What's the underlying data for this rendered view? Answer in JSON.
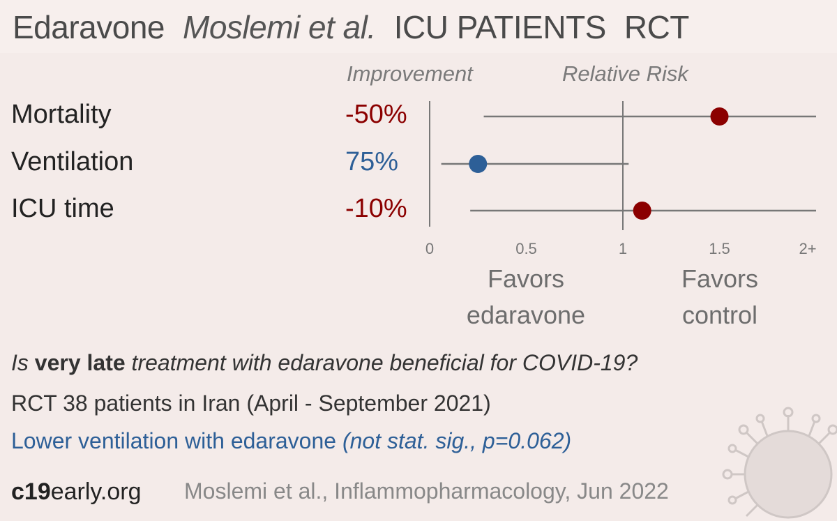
{
  "header": {
    "drug": "Edaravone",
    "author": "Moslemi et al.",
    "population": "ICU PATIENTS",
    "design": "RCT"
  },
  "columns": {
    "improvement": "Improvement",
    "relative_risk": "Relative Risk"
  },
  "favors": {
    "left_line1": "Favors",
    "left_line2": "edaravone",
    "right_line1": "Favors",
    "right_line2": "control"
  },
  "summary": {
    "question_pre": "Is ",
    "question_bold": "very late",
    "question_post": " treatment with edaravone beneficial for COVID-19?",
    "study": "RCT 38 patients in Iran (April - September 2021)",
    "conclusion_main": "Lower ventilation with edaravone ",
    "conclusion_detail": "(not stat. sig., p=0.062)"
  },
  "footer": {
    "site_bold": "c19",
    "site_rest": "early.org",
    "reference": "Moslemi et al., Inflammopharmacology, Jun 2022"
  },
  "colors": {
    "harm": "#8b0000",
    "benefit": "#2d5f97",
    "line": "#777777",
    "background": "#f4ebe9"
  },
  "chart_data": {
    "type": "scatter",
    "xlim": [
      0,
      2
    ],
    "x_ticks": [
      {
        "value": 0,
        "label": "0"
      },
      {
        "value": 0.5,
        "label": "0.5"
      },
      {
        "value": 1,
        "label": "1"
      },
      {
        "value": 1.5,
        "label": "1.5"
      },
      {
        "value": 2,
        "label": "2+"
      }
    ],
    "reference_line": 1,
    "series": [
      {
        "outcome": "Mortality",
        "improvement": "-50%",
        "rr": 1.5,
        "ci_low": 0.28,
        "ci_high": 2.0,
        "effect": "harm"
      },
      {
        "outcome": "Ventilation",
        "improvement": "75%",
        "rr": 0.25,
        "ci_low": 0.06,
        "ci_high": 1.03,
        "effect": "benefit"
      },
      {
        "outcome": "ICU time",
        "improvement": "-10%",
        "rr": 1.1,
        "ci_low": 0.21,
        "ci_high": 2.0,
        "effect": "harm"
      }
    ]
  }
}
